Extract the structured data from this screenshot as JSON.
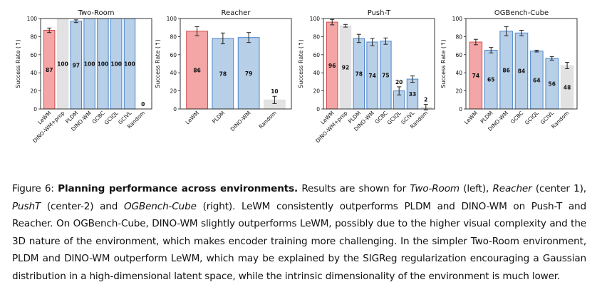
{
  "chart_data": [
    {
      "type": "bar",
      "title": "Two-Room",
      "ylabel": "Success Rate (↑)",
      "ylim": [
        0,
        100
      ],
      "yticks": [
        0,
        20,
        40,
        60,
        80,
        100
      ],
      "categories": [
        "LeWM",
        "DINO-WM+prop",
        "PLDM",
        "DINO-WM",
        "GCBC",
        "GCIQL",
        "GCIVL",
        "Random"
      ],
      "values": [
        87,
        100,
        97,
        100,
        100,
        100,
        100,
        0
      ],
      "errors": [
        2.5,
        0,
        1.5,
        0,
        0,
        0,
        0,
        0
      ],
      "kinds": [
        "lewm",
        "grey",
        "blue",
        "blue",
        "blue",
        "blue",
        "blue",
        "grey"
      ]
    },
    {
      "type": "bar",
      "title": "Reacher",
      "ylabel": "Success Rate (↑)",
      "ylim": [
        0,
        100
      ],
      "yticks": [
        0,
        20,
        40,
        60,
        80,
        100
      ],
      "categories": [
        "LeWM",
        "PLDM",
        "DINO-WM",
        "Random"
      ],
      "values": [
        86,
        78,
        79,
        10
      ],
      "errors": [
        5,
        6,
        5.5,
        4
      ],
      "kinds": [
        "lewm",
        "blue",
        "blue",
        "grey"
      ]
    },
    {
      "type": "bar",
      "title": "Push-T",
      "ylabel": "Success Rate (↑)",
      "ylim": [
        0,
        100
      ],
      "yticks": [
        0,
        20,
        40,
        60,
        80,
        100
      ],
      "categories": [
        "LeWM",
        "DINO-WM+prop",
        "PLDM",
        "DINO-WM",
        "GCBC",
        "GCIQL",
        "GCIVL",
        "Random"
      ],
      "values": [
        96,
        92,
        78,
        74,
        75,
        20,
        33,
        2
      ],
      "errors": [
        3,
        1.5,
        4.5,
        4,
        3.5,
        4.5,
        3.5,
        3
      ],
      "kinds": [
        "lewm",
        "grey",
        "blue",
        "blue",
        "blue",
        "blue",
        "blue",
        "grey"
      ]
    },
    {
      "type": "bar",
      "title": "OGBench-Cube",
      "ylabel": "Success Rate (↑)",
      "ylim": [
        0,
        100
      ],
      "yticks": [
        0,
        20,
        40,
        60,
        80,
        100
      ],
      "categories": [
        "LeWM",
        "PLDM",
        "DINO-WM",
        "GCBC",
        "GCIQL",
        "GCIVL",
        "Random"
      ],
      "values": [
        74,
        65,
        86,
        84,
        64,
        56,
        48
      ],
      "errors": [
        3,
        3,
        5,
        3,
        1,
        2,
        3.5
      ],
      "kinds": [
        "lewm",
        "blue",
        "blue",
        "blue",
        "blue",
        "blue",
        "grey"
      ]
    }
  ],
  "colors": {
    "lewm_fill": "#f4a5a5",
    "lewm_edge": "#d64c4c",
    "blue_fill": "#b8cfe8",
    "blue_edge": "#4a86cb",
    "grey_fill": "#e2e2e2",
    "grey_edge": "#e2e2e2",
    "error_bar": "#222222",
    "axis": "#222222"
  },
  "caption": {
    "figure_label": "Figure 6: ",
    "bold_title": "Planning performance across environments.",
    "part1": " Results are shown for ",
    "env1": "Two-Room",
    "part2": " (left), ",
    "env2": "Reacher",
    "part3": " (center 1), ",
    "env3": "PushT",
    "part4": " (center-2) and ",
    "env4": "OGBench-Cube",
    "part5": " (right). LeWM consistently outperforms PLDM and DINO-WM on Push-T and Reacher. On OGBench-Cube, DINO-WM slightly outperforms LeWM, possibly due to the higher visual complexity and the 3D nature of the environment, which makes encoder training more challenging. In the simpler Two-Room environment, PLDM and DINO-WM outperform LeWM, which may be explained by the SIGReg regularization encouraging a Gaussian distribution in a high-dimensional latent space, while the intrinsic dimensionality of the environment is much lower."
  }
}
